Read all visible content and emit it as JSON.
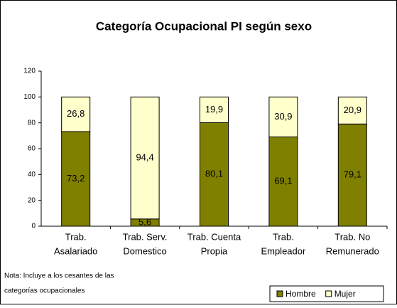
{
  "chart_data": {
    "type": "stacked_bar",
    "title": "Categoría Ocupacional PI según sexo",
    "categories": [
      [
        "Trab.",
        "Asalariado"
      ],
      [
        "Trab. Serv.",
        "Domestico"
      ],
      [
        "Trab. Cuenta",
        "Propia"
      ],
      [
        "Trab.",
        "Empleador"
      ],
      [
        "Trab. No",
        "Remunerado"
      ]
    ],
    "series": [
      {
        "name": "Hombre",
        "color": "#808000",
        "values": [
          73.2,
          5.6,
          80.1,
          69.1,
          79.1
        ],
        "value_labels": [
          "73,2",
          "5,6",
          "80,1",
          "69,1",
          "79,1"
        ]
      },
      {
        "name": "Mujer",
        "color": "#ffffcc",
        "values": [
          26.8,
          94.4,
          19.9,
          30.9,
          20.9
        ],
        "value_labels": [
          "26,8",
          "94,4",
          "19,9",
          "30,9",
          "20,9"
        ]
      }
    ],
    "ylim": [
      0,
      120
    ],
    "yticks": [
      0,
      20,
      40,
      60,
      80,
      100,
      120
    ],
    "legend": "bottom-right",
    "note": [
      "Nota: Incluye a los cesantes de las",
      "categorías ocupacionales"
    ]
  }
}
